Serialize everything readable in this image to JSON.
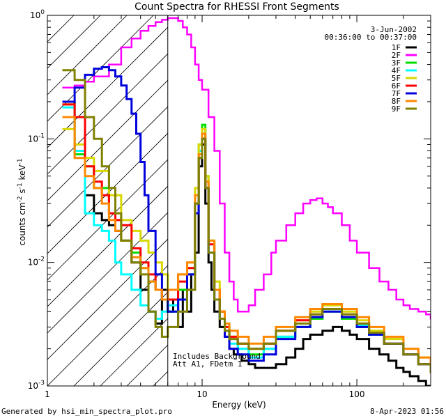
{
  "chart_data": {
    "type": "line",
    "title": "Count Spectra for RHESSI Front Segments",
    "xlabel": "Energy (keV)",
    "ylabel_main": "counts cm",
    "ylabel_exp1": "-2",
    "ylabel_mid": " s",
    "ylabel_exp2": "-1",
    "ylabel_end": " keV",
    "ylabel_exp3": "-1",
    "xscale": "log",
    "yscale": "log",
    "xlim": [
      1,
      300
    ],
    "ylim": [
      0.001,
      1
    ],
    "x_ticks": [
      {
        "v": 1,
        "label": "1"
      },
      {
        "v": 10,
        "label": "10"
      },
      {
        "v": 100,
        "label": "100"
      }
    ],
    "y_ticks": [
      {
        "v": 0.001,
        "base": "10",
        "exp": "-3"
      },
      {
        "v": 0.01,
        "base": "10",
        "exp": "-2"
      },
      {
        "v": 0.1,
        "base": "10",
        "exp": "-1"
      },
      {
        "v": 1,
        "base": "10",
        "exp": "0"
      }
    ],
    "date": "3-Jun-2002",
    "time_range": "00:36:00 to 00:37:00",
    "annotation_line1": "Includes Background",
    "annotation_line2": "Att A1, FDetm 1",
    "hatched_region_xmax": 6,
    "series": [
      {
        "name": "1F",
        "color": "#000000",
        "x": [
          1.25,
          1.5,
          1.75,
          2,
          2.25,
          2.5,
          2.75,
          3,
          3.5,
          4,
          4.5,
          5,
          5.5,
          6,
          6.5,
          7,
          7.5,
          8,
          8.5,
          9,
          9.5,
          10,
          10.5,
          11,
          11.5,
          12,
          13,
          14,
          15,
          16,
          18,
          20,
          22,
          25,
          28,
          30,
          35,
          40,
          45,
          50,
          60,
          70,
          80,
          90,
          100,
          120,
          140,
          160,
          180,
          200,
          220,
          250,
          280
        ],
        "y": [
          0.2,
          0.08,
          0.035,
          0.025,
          0.022,
          0.02,
          0.018,
          0.015,
          0.01,
          0.006,
          0.004,
          0.0032,
          0.006,
          0.004,
          0.005,
          0.003,
          0.006,
          0.004,
          0.008,
          0.012,
          0.06,
          0.09,
          0.03,
          0.01,
          0.006,
          0.004,
          0.003,
          0.0025,
          0.002,
          0.0018,
          0.0016,
          0.0015,
          0.0014,
          0.0014,
          0.0014,
          0.0015,
          0.0017,
          0.002,
          0.0024,
          0.0026,
          0.0028,
          0.003,
          0.0028,
          0.0026,
          0.0024,
          0.002,
          0.0018,
          0.0016,
          0.0014,
          0.0013,
          0.0012,
          0.0011,
          0.001
        ]
      },
      {
        "name": "2F",
        "color": "#ff00ff",
        "x": [
          1.25,
          1.5,
          1.75,
          2,
          2.5,
          3,
          3.5,
          4,
          4.5,
          5,
          5.5,
          6,
          6.5,
          7,
          7.5,
          8,
          8.5,
          9,
          9.5,
          10,
          11,
          12,
          13,
          14,
          15,
          16,
          17,
          18,
          20,
          22,
          25,
          28,
          30,
          35,
          40,
          45,
          50,
          55,
          60,
          65,
          70,
          80,
          90,
          100,
          120,
          140,
          160,
          180,
          200,
          220,
          250,
          280,
          300
        ],
        "y": [
          0.26,
          0.27,
          0.29,
          0.32,
          0.4,
          0.55,
          0.65,
          0.75,
          0.82,
          0.88,
          0.92,
          0.95,
          0.95,
          0.9,
          0.8,
          0.7,
          0.55,
          0.4,
          0.3,
          0.25,
          0.15,
          0.08,
          0.03,
          0.012,
          0.007,
          0.005,
          0.004,
          0.004,
          0.0045,
          0.006,
          0.008,
          0.012,
          0.015,
          0.02,
          0.025,
          0.03,
          0.032,
          0.033,
          0.03,
          0.028,
          0.025,
          0.02,
          0.015,
          0.012,
          0.009,
          0.007,
          0.006,
          0.005,
          0.0045,
          0.0042,
          0.004,
          0.0038,
          0.0035
        ]
      },
      {
        "name": "3F",
        "color": "#00e000",
        "x": [
          1.25,
          1.5,
          1.75,
          2,
          2.5,
          3,
          3.5,
          4,
          4.5,
          5,
          5.5,
          6,
          7,
          8,
          9,
          9.5,
          10,
          10.5,
          11,
          12,
          13,
          14,
          15,
          17,
          20,
          25,
          30,
          40,
          50,
          60,
          80,
          100,
          120,
          150,
          200,
          250,
          300
        ],
        "y": [
          0.19,
          0.075,
          0.06,
          0.04,
          0.025,
          0.015,
          0.012,
          0.009,
          0.007,
          0.006,
          0.005,
          0.004,
          0.006,
          0.009,
          0.03,
          0.09,
          0.13,
          0.05,
          0.015,
          0.006,
          0.004,
          0.003,
          0.0025,
          0.002,
          0.0018,
          0.002,
          0.0025,
          0.003,
          0.0035,
          0.004,
          0.0035,
          0.003,
          0.0026,
          0.0022,
          0.0018,
          0.0015,
          0.0013
        ]
      },
      {
        "name": "4F",
        "color": "#00ffff",
        "x": [
          1.25,
          1.5,
          1.75,
          2,
          2.25,
          2.5,
          2.75,
          3,
          3.5,
          4,
          4.5,
          5,
          5.5,
          6,
          7,
          8,
          9,
          9.5,
          10,
          10.5,
          11,
          12,
          13,
          14,
          15,
          17,
          20,
          25,
          30,
          40,
          50,
          60,
          80,
          100,
          120,
          150,
          200,
          250,
          300
        ],
        "y": [
          0.18,
          0.08,
          0.025,
          0.02,
          0.018,
          0.015,
          0.01,
          0.008,
          0.006,
          0.0045,
          0.004,
          0.0035,
          0.004,
          0.0045,
          0.005,
          0.008,
          0.03,
          0.08,
          0.11,
          0.04,
          0.012,
          0.005,
          0.0035,
          0.0028,
          0.0022,
          0.002,
          0.0017,
          0.002,
          0.0025,
          0.003,
          0.0036,
          0.0042,
          0.0036,
          0.0031,
          0.0026,
          0.0022,
          0.0018,
          0.0015,
          0.0013
        ]
      },
      {
        "name": "5F",
        "color": "#d8d800",
        "x": [
          1.25,
          1.5,
          1.75,
          2,
          2.5,
          3,
          3.5,
          4,
          4.5,
          5,
          5.5,
          6,
          7,
          8,
          9,
          9.5,
          10,
          10.5,
          11,
          12,
          13,
          14,
          15,
          17,
          20,
          25,
          30,
          40,
          50,
          60,
          80,
          100,
          120,
          150,
          200,
          250,
          300
        ],
        "y": [
          0.12,
          0.09,
          0.07,
          0.055,
          0.035,
          0.022,
          0.018,
          0.015,
          0.012,
          0.01,
          0.008,
          0.006,
          0.008,
          0.01,
          0.04,
          0.09,
          0.12,
          0.05,
          0.015,
          0.007,
          0.004,
          0.003,
          0.0025,
          0.0022,
          0.002,
          0.0022,
          0.0028,
          0.0034,
          0.004,
          0.0045,
          0.004,
          0.0034,
          0.0028,
          0.0024,
          0.002,
          0.0017,
          0.0014
        ]
      },
      {
        "name": "6F",
        "color": "#ff0000",
        "x": [
          1.25,
          1.5,
          1.75,
          2,
          2.25,
          2.5,
          2.75,
          3,
          3.5,
          4,
          4.5,
          5,
          5.5,
          6,
          7,
          8,
          9,
          9.5,
          10,
          10.5,
          11,
          12,
          13,
          14,
          15,
          17,
          20,
          25,
          30,
          40,
          50,
          60,
          80,
          100,
          120,
          150,
          200,
          250,
          300
        ],
        "y": [
          0.19,
          0.15,
          0.06,
          0.045,
          0.035,
          0.025,
          0.022,
          0.02,
          0.013,
          0.01,
          0.008,
          0.006,
          0.005,
          0.005,
          0.007,
          0.009,
          0.03,
          0.07,
          0.1,
          0.04,
          0.014,
          0.006,
          0.004,
          0.003,
          0.0025,
          0.0022,
          0.002,
          0.0022,
          0.0028,
          0.0034,
          0.0038,
          0.0042,
          0.0038,
          0.0032,
          0.0027,
          0.0022,
          0.0018,
          0.0015,
          0.0013
        ]
      },
      {
        "name": "7F",
        "color": "#0000dd",
        "x": [
          1.25,
          1.5,
          1.75,
          2,
          2.25,
          2.5,
          2.75,
          3,
          3.25,
          3.5,
          3.75,
          4,
          4.25,
          4.5,
          5,
          5.5,
          6,
          7,
          8,
          9,
          9.5,
          10,
          10.5,
          11,
          12,
          13,
          14,
          15,
          17,
          20,
          25,
          30,
          40,
          50,
          60,
          80,
          100,
          120,
          150,
          200,
          250,
          300
        ],
        "y": [
          0.2,
          0.26,
          0.33,
          0.37,
          0.38,
          0.36,
          0.32,
          0.27,
          0.21,
          0.16,
          0.11,
          0.065,
          0.035,
          0.018,
          0.008,
          0.005,
          0.004,
          0.005,
          0.008,
          0.025,
          0.07,
          0.1,
          0.04,
          0.012,
          0.005,
          0.0035,
          0.0025,
          0.002,
          0.0018,
          0.0016,
          0.0018,
          0.0024,
          0.003,
          0.0036,
          0.004,
          0.0036,
          0.003,
          0.0026,
          0.0022,
          0.0018,
          0.0015,
          0.0013
        ]
      },
      {
        "name": "8F",
        "color": "#ff8800",
        "x": [
          1.25,
          1.5,
          1.75,
          2,
          2.25,
          2.5,
          2.75,
          3,
          3.5,
          4,
          4.5,
          5,
          5.5,
          6,
          7,
          8,
          9,
          9.5,
          10,
          10.5,
          11,
          12,
          13,
          14,
          15,
          17,
          20,
          25,
          30,
          40,
          50,
          60,
          80,
          100,
          120,
          150,
          200,
          250,
          300
        ],
        "y": [
          0.15,
          0.07,
          0.05,
          0.04,
          0.03,
          0.022,
          0.018,
          0.015,
          0.011,
          0.009,
          0.007,
          0.006,
          0.005,
          0.006,
          0.008,
          0.01,
          0.035,
          0.075,
          0.11,
          0.045,
          0.015,
          0.006,
          0.004,
          0.0032,
          0.0028,
          0.0025,
          0.0022,
          0.0025,
          0.003,
          0.0036,
          0.0042,
          0.0046,
          0.0042,
          0.0036,
          0.003,
          0.0025,
          0.002,
          0.0017,
          0.0014
        ]
      },
      {
        "name": "9F",
        "color": "#808000",
        "x": [
          1.25,
          1.5,
          1.75,
          2,
          2.25,
          2.5,
          2.75,
          3,
          3.5,
          4,
          4.5,
          5,
          5.5,
          6,
          7,
          8,
          9,
          9.5,
          10,
          10.5,
          11,
          12,
          13,
          14,
          15,
          17,
          20,
          25,
          30,
          40,
          50,
          60,
          80,
          100,
          120,
          150,
          200,
          250,
          300
        ],
        "y": [
          0.36,
          0.3,
          0.15,
          0.1,
          0.06,
          0.04,
          0.025,
          0.015,
          0.01,
          0.008,
          0.004,
          0.003,
          0.0025,
          0.003,
          0.004,
          0.006,
          0.03,
          0.07,
          0.1,
          0.04,
          0.012,
          0.005,
          0.0035,
          0.0028,
          0.0024,
          0.0022,
          0.002,
          0.0022,
          0.0028,
          0.0032,
          0.0038,
          0.0042,
          0.0038,
          0.0032,
          0.0027,
          0.0022,
          0.0018,
          0.0015,
          0.0013
        ]
      }
    ]
  },
  "footer": {
    "left": "Generated by hsi_min_spectra_plot.pro",
    "right": "8-Apr-2023 01:56"
  }
}
